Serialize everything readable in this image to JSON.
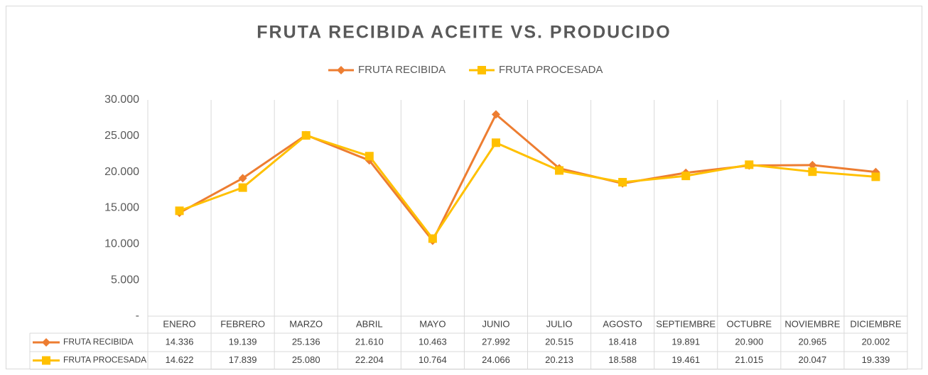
{
  "chart_data": {
    "type": "line",
    "title": "FRUTA RECIBIDA ACEITE VS. PRODUCIDO",
    "categories": [
      "ENERO",
      "FEBRERO",
      "MARZO",
      "ABRIL",
      "MAYO",
      "JUNIO",
      "JULIO",
      "AGOSTO",
      "SEPTIEMBRE",
      "OCTUBRE",
      "NOVIEMBRE",
      "DICIEMBRE"
    ],
    "series": [
      {
        "name": "FRUTA RECIBIDA",
        "color": "#ED7D31",
        "marker": "diamond",
        "values": [
          14336,
          19139,
          25136,
          21610,
          10463,
          27992,
          20515,
          18418,
          19891,
          20900,
          20965,
          20002
        ],
        "value_labels": [
          "14.336",
          "19.139",
          "25.136",
          "21.610",
          "10.463",
          "27.992",
          "20.515",
          "18.418",
          "19.891",
          "20.900",
          "20.965",
          "20.002"
        ]
      },
      {
        "name": "FRUTA PROCESADA",
        "color": "#FFC000",
        "marker": "square",
        "values": [
          14622,
          17839,
          25080,
          22204,
          10764,
          24066,
          20213,
          18588,
          19461,
          21015,
          20047,
          19339
        ],
        "value_labels": [
          "14.622",
          "17.839",
          "25.080",
          "22.204",
          "10.764",
          "24.066",
          "20.213",
          "18.588",
          "19.461",
          "21.015",
          "20.047",
          "19.339"
        ]
      }
    ],
    "ylim": [
      0,
      30000
    ],
    "yticks": [
      {
        "value": 0,
        "label": "-"
      },
      {
        "value": 5000,
        "label": "5.000"
      },
      {
        "value": 10000,
        "label": "10.000"
      },
      {
        "value": 15000,
        "label": "15.000"
      },
      {
        "value": 20000,
        "label": "20.000"
      },
      {
        "value": 25000,
        "label": "25.000"
      },
      {
        "value": 30000,
        "label": "30.000"
      }
    ],
    "grid": "x",
    "legend": "top",
    "data_table": true
  }
}
